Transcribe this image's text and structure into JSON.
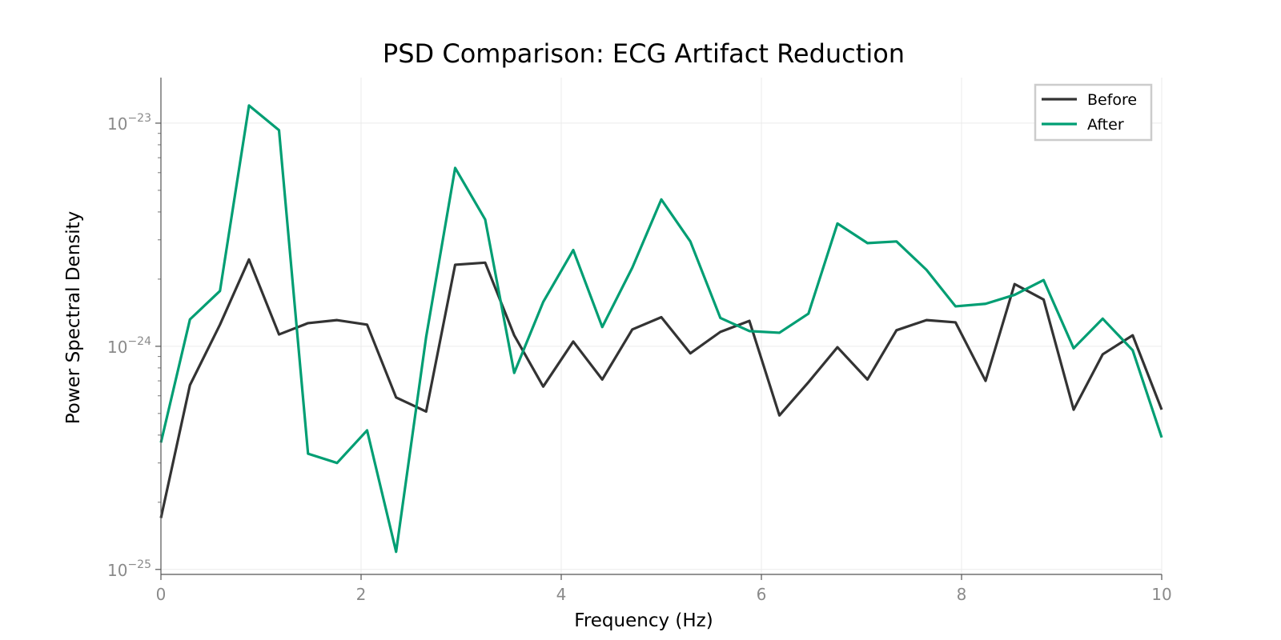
{
  "chart_data": {
    "type": "line",
    "title": "PSD Comparison: ECG Artifact Reduction",
    "xlabel": "Frequency (Hz)",
    "ylabel": "Power Spectral Density",
    "xlim": [
      0,
      10
    ],
    "ylim": [
      9.5e-26,
      1.6e-23
    ],
    "yscale": "log",
    "xticks": [
      0,
      2,
      4,
      6,
      8,
      10
    ],
    "xtick_labels": [
      "0",
      "2",
      "4",
      "6",
      "8",
      "10"
    ],
    "yticks": [
      1e-25,
      1e-24,
      1e-23
    ],
    "ytick_labels": [
      {
        "base": "10",
        "exp": "−25"
      },
      {
        "base": "10",
        "exp": "−24"
      },
      {
        "base": "10",
        "exp": "−23"
      }
    ],
    "grid": true,
    "legend_position": "top-right",
    "x": [
      0,
      0.29,
      0.59,
      0.88,
      1.18,
      1.47,
      1.76,
      2.06,
      2.35,
      2.65,
      2.94,
      3.24,
      3.53,
      3.82,
      4.12,
      4.41,
      4.71,
      5.0,
      5.29,
      5.59,
      5.88,
      6.18,
      6.47,
      6.76,
      7.06,
      7.35,
      7.65,
      7.94,
      8.24,
      8.53,
      8.82,
      9.12,
      9.41,
      9.71,
      10.0
    ],
    "series": [
      {
        "name": "Before",
        "color": "#333333",
        "values": [
          1.7e-25,
          6.7e-25,
          1.25e-24,
          2.45e-24,
          1.13e-24,
          1.27e-24,
          1.31e-24,
          1.25e-24,
          5.9e-25,
          5.1e-25,
          2.32e-24,
          2.37e-24,
          1.12e-24,
          6.6e-25,
          1.05e-24,
          7.1e-25,
          1.19e-24,
          1.35e-24,
          9.3e-25,
          1.16e-24,
          1.3e-24,
          4.9e-25,
          6.9e-25,
          9.9e-25,
          7.1e-25,
          1.18e-24,
          1.31e-24,
          1.28e-24,
          7e-25,
          1.9e-24,
          1.62e-24,
          5.2e-25,
          9.2e-25,
          1.12e-24,
          5.2e-25
        ]
      },
      {
        "name": "After",
        "color": "#009E73",
        "values": [
          3.7e-25,
          1.32e-24,
          1.77e-24,
          1.2e-23,
          9.3e-24,
          3.3e-25,
          3e-25,
          4.2e-25,
          1.2e-25,
          1.1e-24,
          6.3e-24,
          3.7e-24,
          7.6e-25,
          1.58e-24,
          2.7e-24,
          1.22e-24,
          2.25e-24,
          4.55e-24,
          2.95e-24,
          1.34e-24,
          1.17e-24,
          1.15e-24,
          1.4e-24,
          3.55e-24,
          2.9e-24,
          2.95e-24,
          2.2e-24,
          1.51e-24,
          1.55e-24,
          1.7e-24,
          1.98e-24,
          9.8e-25,
          1.33e-24,
          9.6e-25,
          3.9e-25
        ]
      }
    ]
  }
}
